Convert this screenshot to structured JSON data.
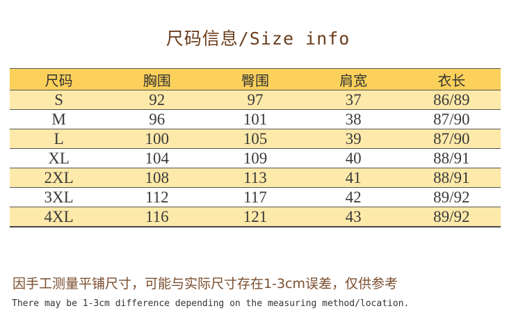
{
  "title": "尺码信息/Size info",
  "colors": {
    "header_row": "#fbd15b",
    "odd_row": "#fde9a9",
    "even_row": "#ffffff",
    "title_text": "#6b3d1c",
    "note_text": "#7a4d2d"
  },
  "table": {
    "headers": [
      "尺码",
      "胸围",
      "臀围",
      "肩宽",
      "衣长"
    ],
    "rows": [
      [
        "S",
        "92",
        "97",
        "37",
        "86/89"
      ],
      [
        "M",
        "96",
        "101",
        "38",
        "87/90"
      ],
      [
        "L",
        "100",
        "105",
        "39",
        "87/90"
      ],
      [
        "XL",
        "104",
        "109",
        "40",
        "88/91"
      ],
      [
        "2XL",
        "108",
        "113",
        "41",
        "88/91"
      ],
      [
        "3XL",
        "112",
        "117",
        "42",
        "89/92"
      ],
      [
        "4XL",
        "116",
        "121",
        "43",
        "89/92"
      ]
    ]
  },
  "notes": {
    "cn": "因手工测量平铺尺寸，可能与实际尺寸存在1-3cm误差，仅供参考",
    "en": "There may be 1-3cm difference depending on the measuring method/location."
  }
}
